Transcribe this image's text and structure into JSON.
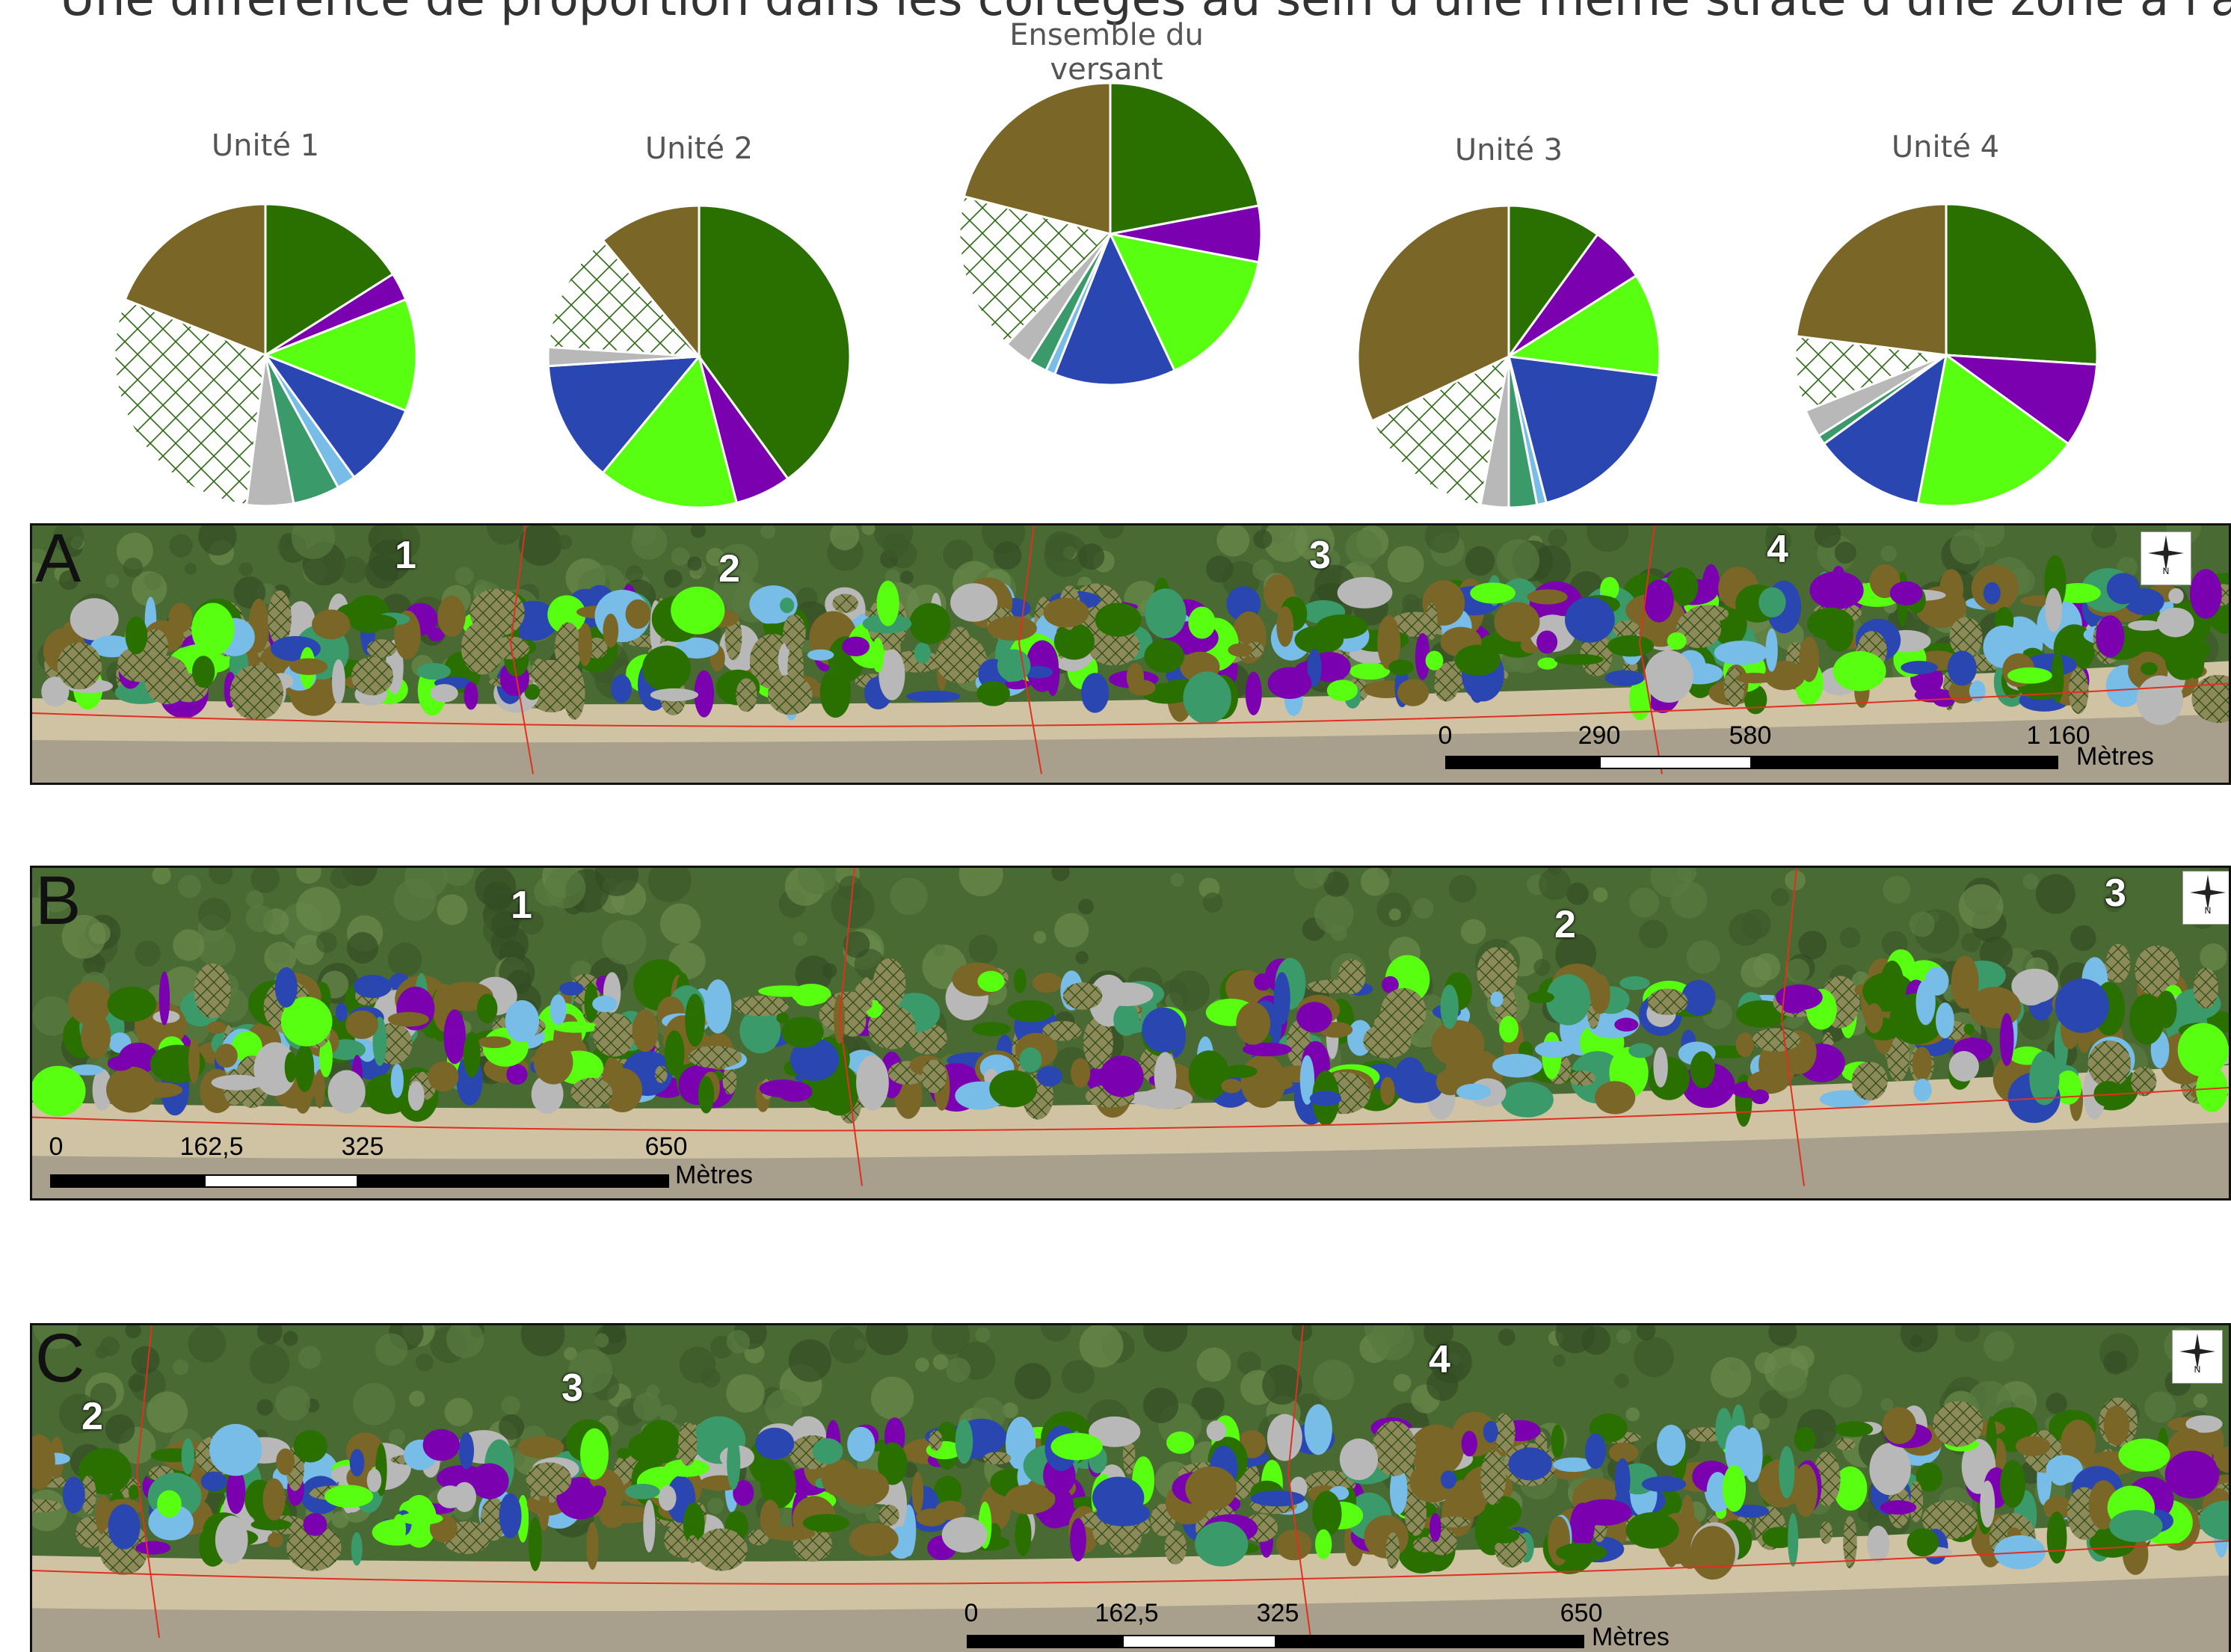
{
  "heading": "Une différence de proportion dans les cortèges au sein d'une même strate d'une zone à l'autre",
  "colors": {
    "dark_green": "#2a7000",
    "purple": "#7a00b0",
    "light_green": "#58ff10",
    "blue": "#2a46b0",
    "teal": "#3a9a6a",
    "light_blue": "#78bce8",
    "grey": "#b8b8b8",
    "hatched": "#2a6a10",
    "brown": "#7a6626",
    "boundary": "#e03020"
  },
  "chart_data": [
    {
      "type": "pie",
      "title": "Unité 1",
      "slices": [
        {
          "category": "dark_green",
          "value": 16
        },
        {
          "category": "purple",
          "value": 3
        },
        {
          "category": "light_green",
          "value": 12
        },
        {
          "category": "blue",
          "value": 9
        },
        {
          "category": "light_blue",
          "value": 2
        },
        {
          "category": "teal",
          "value": 5
        },
        {
          "category": "grey",
          "value": 5
        },
        {
          "category": "hatched",
          "value": 29
        },
        {
          "category": "brown",
          "value": 19
        }
      ]
    },
    {
      "type": "pie",
      "title": "Unité 2",
      "slices": [
        {
          "category": "dark_green",
          "value": 40
        },
        {
          "category": "purple",
          "value": 6
        },
        {
          "category": "light_green",
          "value": 15
        },
        {
          "category": "blue",
          "value": 13
        },
        {
          "category": "grey",
          "value": 2
        },
        {
          "category": "hatched",
          "value": 13
        },
        {
          "category": "brown",
          "value": 11
        }
      ]
    },
    {
      "type": "pie",
      "title": "Ensemble du versant",
      "slices": [
        {
          "category": "dark_green",
          "value": 22
        },
        {
          "category": "purple",
          "value": 6
        },
        {
          "category": "light_green",
          "value": 15
        },
        {
          "category": "blue",
          "value": 13
        },
        {
          "category": "light_blue",
          "value": 1
        },
        {
          "category": "teal",
          "value": 2
        },
        {
          "category": "grey",
          "value": 3
        },
        {
          "category": "hatched",
          "value": 17
        },
        {
          "category": "brown",
          "value": 21
        }
      ]
    },
    {
      "type": "pie",
      "title": "Unité 3",
      "slices": [
        {
          "category": "dark_green",
          "value": 10
        },
        {
          "category": "purple",
          "value": 6
        },
        {
          "category": "light_green",
          "value": 11
        },
        {
          "category": "blue",
          "value": 19
        },
        {
          "category": "light_blue",
          "value": 1
        },
        {
          "category": "teal",
          "value": 3
        },
        {
          "category": "grey",
          "value": 3
        },
        {
          "category": "hatched",
          "value": 15
        },
        {
          "category": "brown",
          "value": 32
        }
      ]
    },
    {
      "type": "pie",
      "title": "Unité 4",
      "slices": [
        {
          "category": "dark_green",
          "value": 26
        },
        {
          "category": "purple",
          "value": 9
        },
        {
          "category": "light_green",
          "value": 18
        },
        {
          "category": "blue",
          "value": 12
        },
        {
          "category": "teal",
          "value": 1
        },
        {
          "category": "grey",
          "value": 3
        },
        {
          "category": "hatched",
          "value": 8
        },
        {
          "category": "brown",
          "value": 23
        }
      ]
    }
  ],
  "maps": [
    {
      "letter": "A",
      "units": [
        "1",
        "2",
        "3",
        "4"
      ],
      "scale": {
        "ticks": [
          "0",
          "290",
          "580",
          "1 160"
        ],
        "unit": "Mètres"
      },
      "north_label": "N"
    },
    {
      "letter": "B",
      "units": [
        "1",
        "2",
        "3"
      ],
      "scale": {
        "ticks": [
          "0",
          "162,5",
          "325",
          "650"
        ],
        "unit": "Mètres"
      },
      "north_label": "N"
    },
    {
      "letter": "C",
      "units": [
        "2",
        "3",
        "4"
      ],
      "scale": {
        "ticks": [
          "0",
          "162,5",
          "325",
          "650"
        ],
        "unit": "Mètres"
      },
      "north_label": "N"
    }
  ]
}
